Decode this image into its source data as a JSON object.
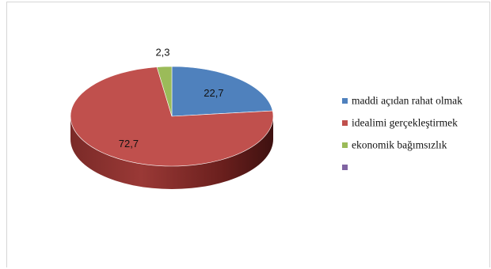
{
  "chart_data": {
    "type": "pie",
    "title": "",
    "slices": [
      {
        "label": "maddi açıdan rahat olmak",
        "value": 22.7,
        "display": "22,7",
        "color": "#4F81BD",
        "dark": "#3A5F8F"
      },
      {
        "label": "idealimi gerçekleştirmek",
        "value": 72.7,
        "display": "72,7",
        "color": "#C0504D",
        "dark": "#6E2220"
      },
      {
        "label": "ekonomik bağımsızlık",
        "value": 2.3,
        "display": "2,3",
        "color": "#9BBB59",
        "dark": "#6A8A33"
      },
      {
        "label": "",
        "value": 0,
        "display": "",
        "color": "#8064A2",
        "dark": "#5C4878"
      }
    ],
    "legend_position": "right"
  }
}
